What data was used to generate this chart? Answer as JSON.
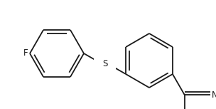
{
  "background_color": "#ffffff",
  "line_color": "#1a1a1a",
  "line_width": 1.3,
  "figsize": [
    3.04,
    1.53
  ],
  "dpi": 100,
  "xlim": [
    0,
    304
  ],
  "ylim": [
    0,
    153
  ]
}
